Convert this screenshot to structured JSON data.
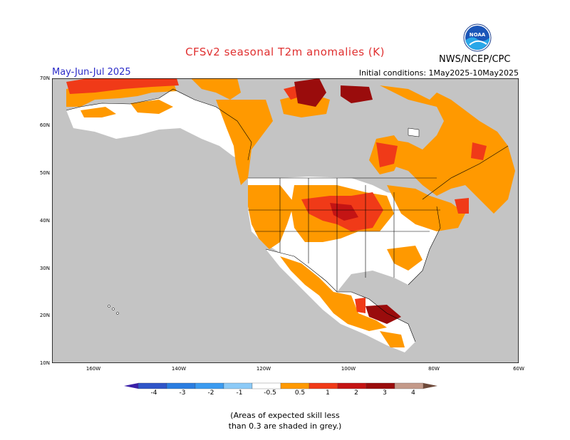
{
  "header": {
    "title": "CFSv2 seasonal T2m anomalies (K)",
    "period": "May-Jun-Jul 2025",
    "initial_conditions": "Initial conditions: 1May2025-10May2025",
    "agency": "NWS/NCEP/CPC",
    "logo_icon": "noaa-logo-icon"
  },
  "map": {
    "region": "North America",
    "lat_labels": [
      "70N",
      "60N",
      "50N",
      "40N",
      "30N",
      "20N",
      "10N"
    ],
    "lon_labels": [
      "160W",
      "140W",
      "120W",
      "100W",
      "80W",
      "60W"
    ],
    "colors": {
      "ocean_grey": "#c4c4c4",
      "land_white": "#ffffff",
      "orange": "#ff9900",
      "red_orange": "#f03a18",
      "red": "#c41414",
      "dark_red": "#9a0c0c"
    }
  },
  "colorbar": {
    "labels": [
      "-4",
      "-3",
      "-2",
      "-1",
      "-0.5",
      "0.5",
      "1",
      "2",
      "3",
      "4"
    ],
    "colors": [
      "#3a1fa8",
      "#2f55c8",
      "#2a7de0",
      "#3b9bf0",
      "#8ccaf7",
      "#ffffff",
      "#ff9900",
      "#f03a18",
      "#c41414",
      "#9a0c0c",
      "#c49a8a",
      "#6e4a3a"
    ]
  },
  "footnote": {
    "line1": "(Areas of expected skill less",
    "line2": "than 0.3 are shaded in grey.)"
  }
}
